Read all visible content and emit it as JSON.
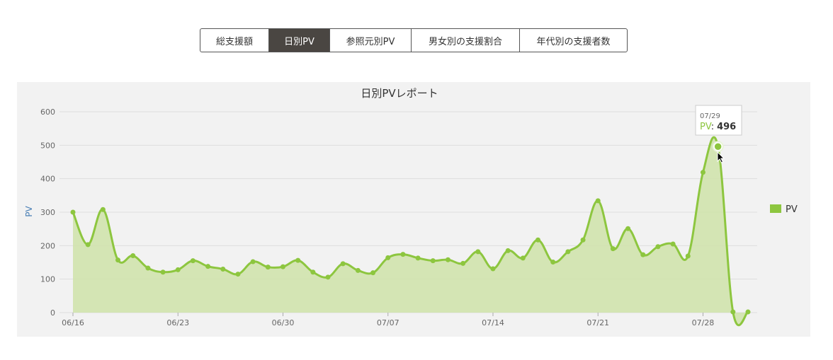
{
  "tabs": [
    {
      "label": "総支援額",
      "active": false
    },
    {
      "label": "日別PV",
      "active": true
    },
    {
      "label": "参照元別PV",
      "active": false
    },
    {
      "label": "男女別の支援割合",
      "active": false
    },
    {
      "label": "年代別の支援者数",
      "active": false
    }
  ],
  "colors": {
    "series": "#8dc63f",
    "fill": "#cfe3a9",
    "tooltip_label": "#8dc63f",
    "grid": "#dddddd"
  },
  "chart_data": {
    "type": "area",
    "title": "日別PVレポート",
    "ylabel": "PV",
    "ylim": [
      0,
      600
    ],
    "yticks": [
      0,
      100,
      200,
      300,
      400,
      500,
      600
    ],
    "x": [
      "06/16",
      "06/17",
      "06/18",
      "06/19",
      "06/20",
      "06/21",
      "06/22",
      "06/23",
      "06/24",
      "06/25",
      "06/26",
      "06/27",
      "06/28",
      "06/29",
      "06/30",
      "07/01",
      "07/02",
      "07/03",
      "07/04",
      "07/05",
      "07/06",
      "07/07",
      "07/08",
      "07/09",
      "07/10",
      "07/11",
      "07/12",
      "07/13",
      "07/14",
      "07/15",
      "07/16",
      "07/17",
      "07/18",
      "07/19",
      "07/20",
      "07/21",
      "07/22",
      "07/23",
      "07/24",
      "07/25",
      "07/26",
      "07/27",
      "07/28",
      "07/29",
      "07/30",
      "07/31"
    ],
    "xtick_labels": [
      "06/16",
      "06/23",
      "06/30",
      "07/07",
      "07/14",
      "07/21",
      "07/28"
    ],
    "series": [
      {
        "name": "PV",
        "values": [
          300,
          203,
          308,
          157,
          170,
          133,
          121,
          128,
          155,
          138,
          130,
          115,
          152,
          136,
          137,
          156,
          121,
          106,
          146,
          126,
          119,
          164,
          174,
          163,
          155,
          158,
          147,
          182,
          131,
          185,
          163,
          217,
          151,
          182,
          217,
          334,
          191,
          251,
          173,
          197,
          205,
          169,
          419,
          496,
          2,
          2
        ]
      }
    ],
    "legend": {
      "position": "right",
      "label": "PV"
    },
    "tooltip": {
      "date": "07/29",
      "label": "PV",
      "separator": ":",
      "value": "496"
    },
    "grid": true
  }
}
